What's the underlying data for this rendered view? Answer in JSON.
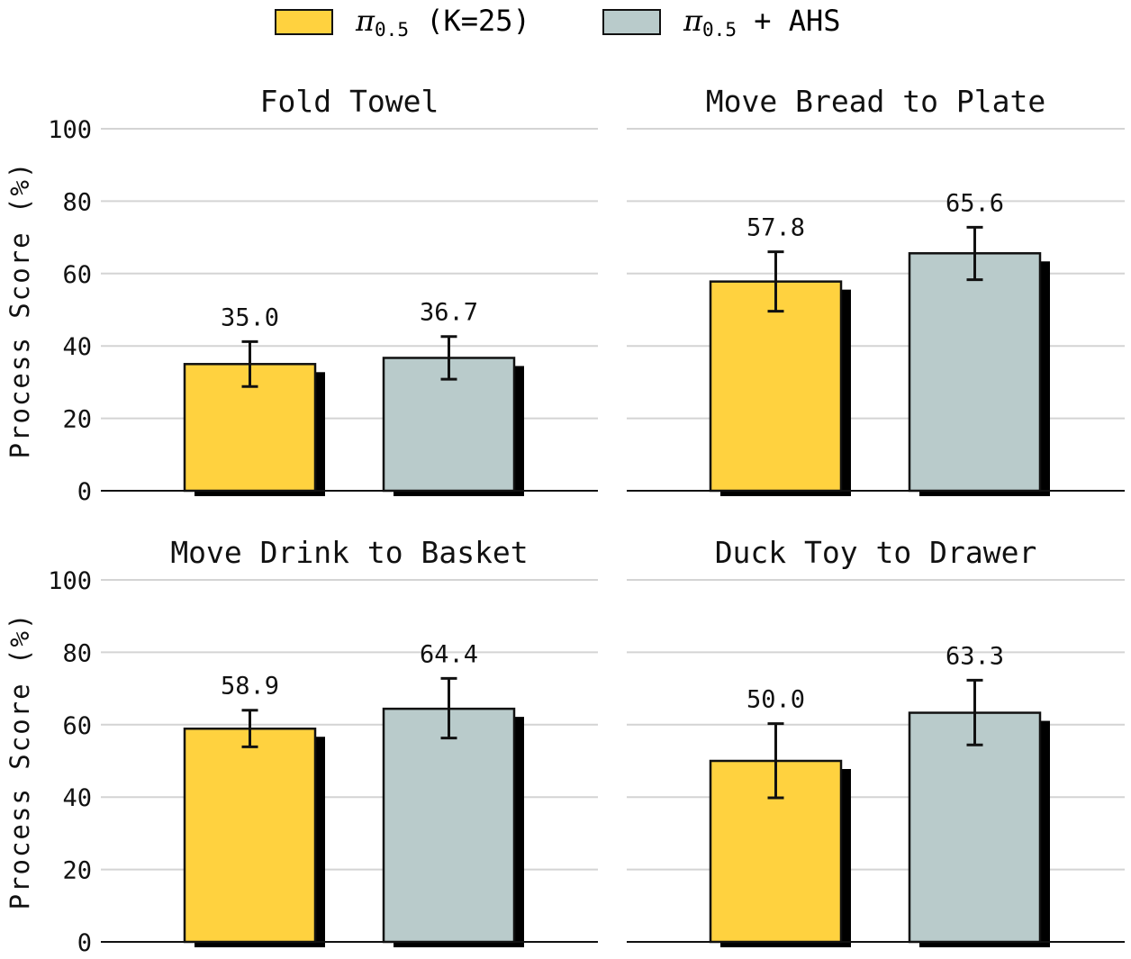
{
  "legend": {
    "items": [
      {
        "symbol": "π",
        "subscript": "0.5",
        "suffix": " (K=25)",
        "color": "#FFD23F"
      },
      {
        "symbol": "π",
        "subscript": "0.5",
        "suffix": " + AHS",
        "color": "#B9CBCB"
      }
    ]
  },
  "chart_data": [
    {
      "type": "bar",
      "title": "Fold Towel",
      "ylabel": "Process Score (%)",
      "ylim": [
        0,
        100
      ],
      "yticks": [
        "0",
        "20",
        "40",
        "60",
        "80",
        "100"
      ],
      "grid": true,
      "series": [
        {
          "value": 35.0,
          "label": "35.0",
          "error": [
            28.8,
            41.2
          ]
        },
        {
          "value": 36.7,
          "label": "36.7",
          "error": [
            30.8,
            42.6
          ]
        }
      ]
    },
    {
      "type": "bar",
      "title": "Move Bread to Plate",
      "ylabel": "",
      "ylim": [
        0,
        100
      ],
      "yticks": [],
      "grid": true,
      "series": [
        {
          "value": 57.8,
          "label": "57.8",
          "error": [
            49.6,
            66.0
          ]
        },
        {
          "value": 65.6,
          "label": "65.6",
          "error": [
            58.3,
            72.8
          ]
        }
      ]
    },
    {
      "type": "bar",
      "title": "Move Drink to Basket",
      "ylabel": "Process Score (%)",
      "ylim": [
        0,
        100
      ],
      "yticks": [
        "0",
        "20",
        "40",
        "60",
        "80",
        "100"
      ],
      "grid": true,
      "series": [
        {
          "value": 58.9,
          "label": "58.9",
          "error": [
            53.9,
            64.0
          ]
        },
        {
          "value": 64.4,
          "label": "64.4",
          "error": [
            56.3,
            72.8
          ]
        }
      ]
    },
    {
      "type": "bar",
      "title": "Duck Toy to Drawer",
      "ylabel": "",
      "ylim": [
        0,
        100
      ],
      "yticks": [],
      "grid": true,
      "series": [
        {
          "value": 50.0,
          "label": "50.0",
          "error": [
            39.8,
            60.3
          ]
        },
        {
          "value": 63.3,
          "label": "63.3",
          "error": [
            54.4,
            72.3
          ]
        }
      ]
    }
  ]
}
